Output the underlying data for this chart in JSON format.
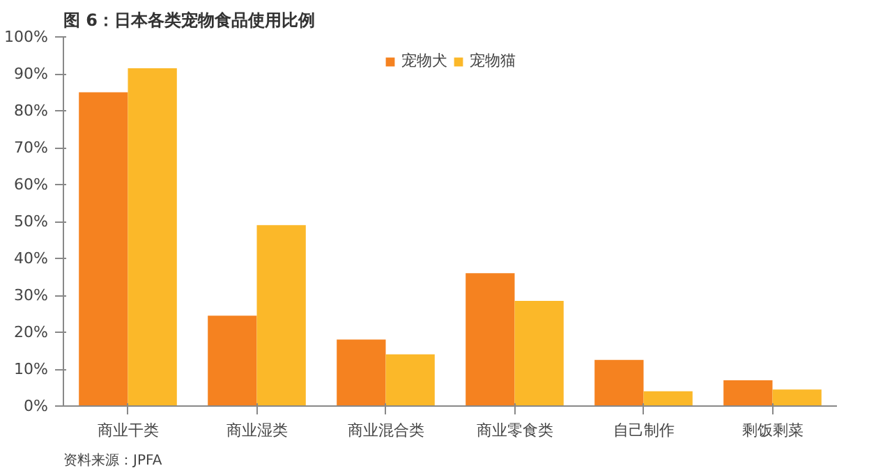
{
  "chart_data": {
    "type": "bar",
    "title": "图 6：日本各类宠物食品使用比例",
    "categories": [
      "商业干类",
      "商业湿类",
      "商业混合类",
      "商业零食类",
      "自己制作",
      "剩饭剩菜"
    ],
    "series": [
      {
        "name": "宠物犬",
        "color": "#f58220",
        "values": [
          85,
          24.5,
          18,
          36,
          12.5,
          7
        ]
      },
      {
        "name": "宠物猫",
        "color": "#fbb829",
        "values": [
          91.5,
          49,
          14,
          28.5,
          4,
          4.5
        ]
      }
    ],
    "ylim": [
      0,
      100
    ],
    "yticks": [
      {
        "value": 0,
        "label": "0%"
      },
      {
        "value": 10,
        "label": "10%"
      },
      {
        "value": 20,
        "label": "20%"
      },
      {
        "value": 30,
        "label": "30%"
      },
      {
        "value": 40,
        "label": "40%"
      },
      {
        "value": 50,
        "label": "50%"
      },
      {
        "value": 60,
        "label": "60%"
      },
      {
        "value": 70,
        "label": "70%"
      },
      {
        "value": 80,
        "label": "80%"
      },
      {
        "value": 90,
        "label": "90%"
      },
      {
        "value": 100,
        "label": "100%"
      }
    ],
    "grid": false,
    "legend": "top",
    "annotations": [
      "资料来源：JPFA"
    ]
  }
}
